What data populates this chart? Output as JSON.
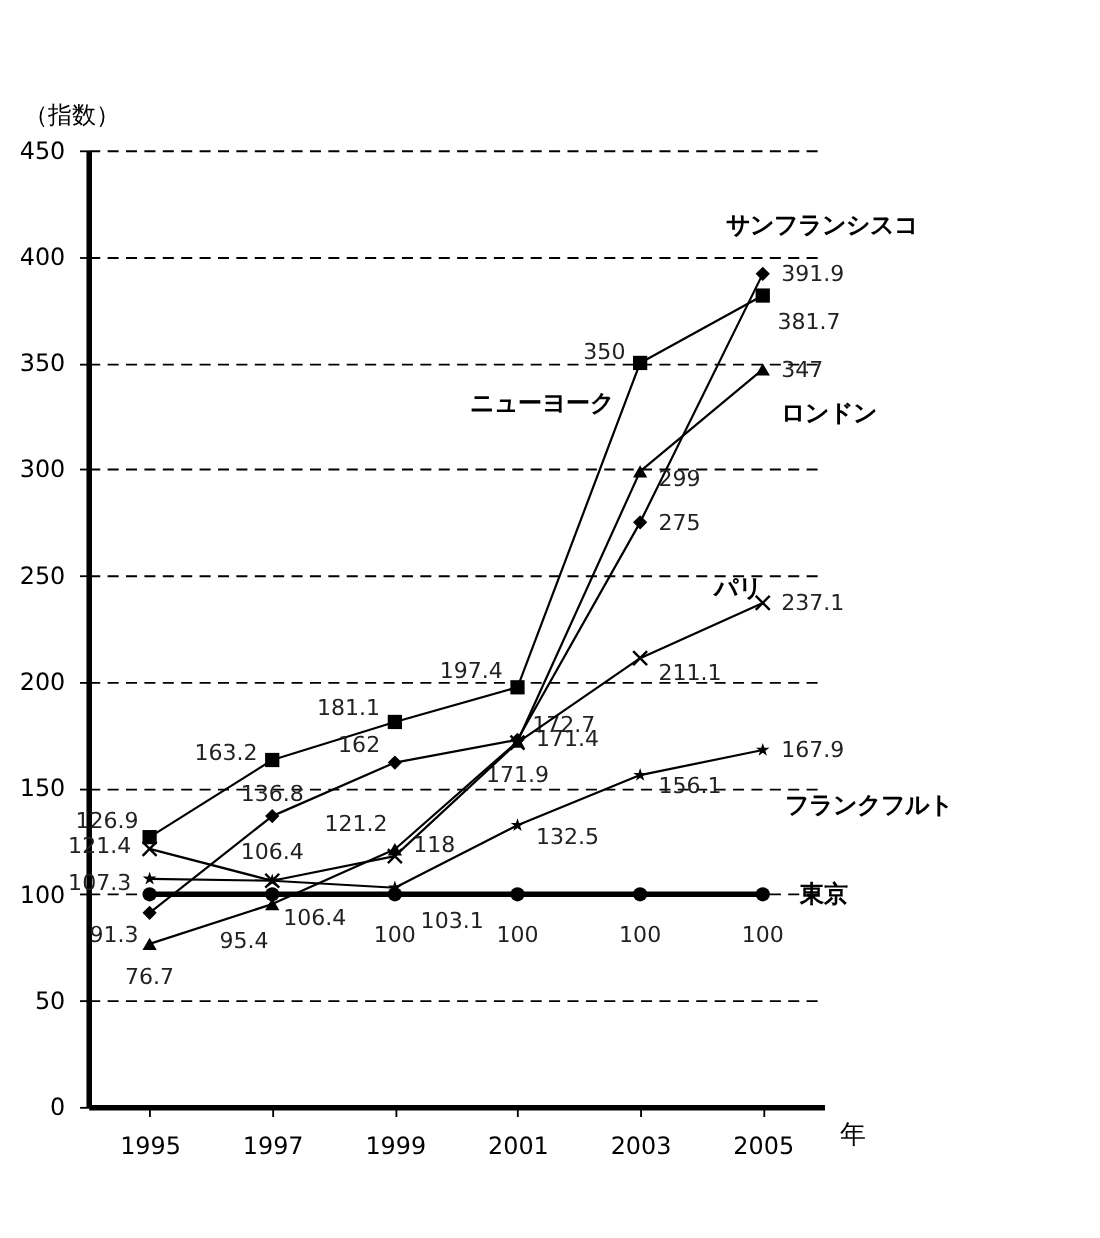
{
  "chart_data": {
    "type": "line",
    "ylabel": "（指数）",
    "xlabel": "年",
    "categories": [
      "1995",
      "1997",
      "1999",
      "2001",
      "2003",
      "2005"
    ],
    "series": [
      {
        "name": "ニューヨーク",
        "color": "#000000",
        "marker": "square",
        "values": [
          126.9,
          163.2,
          181.1,
          197.4,
          350,
          381.7
        ]
      },
      {
        "name": "サンフランシスコ",
        "color": "#000000",
        "marker": "diamond",
        "values": [
          91.3,
          136.8,
          162,
          172.7,
          275,
          391.9
        ]
      },
      {
        "name": "ロンドン",
        "color": "#000000",
        "marker": "triangle",
        "values": [
          76.7,
          95.4,
          121.2,
          171.9,
          299,
          347
        ]
      },
      {
        "name": "パリ",
        "color": "#000000",
        "marker": "cross",
        "values": [
          121.4,
          106.4,
          118,
          171.4,
          211.1,
          237.1
        ]
      },
      {
        "name": "フランクフルト",
        "color": "#000000",
        "marker": "star",
        "values": [
          107.3,
          106.4,
          103.1,
          132.5,
          156.1,
          167.9
        ]
      },
      {
        "name": "東京",
        "color": "#000000",
        "marker": "circle",
        "values": [
          100,
          100,
          100,
          100,
          100,
          100
        ],
        "value_labels": [
          null,
          null,
          "100",
          "100",
          "100",
          "100"
        ]
      }
    ],
    "data_labels": true,
    "ylim": [
      0,
      450
    ],
    "yticks": [
      0,
      50,
      100,
      150,
      200,
      250,
      300,
      350,
      400,
      450
    ],
    "grid": "y",
    "line_style": "solid"
  }
}
